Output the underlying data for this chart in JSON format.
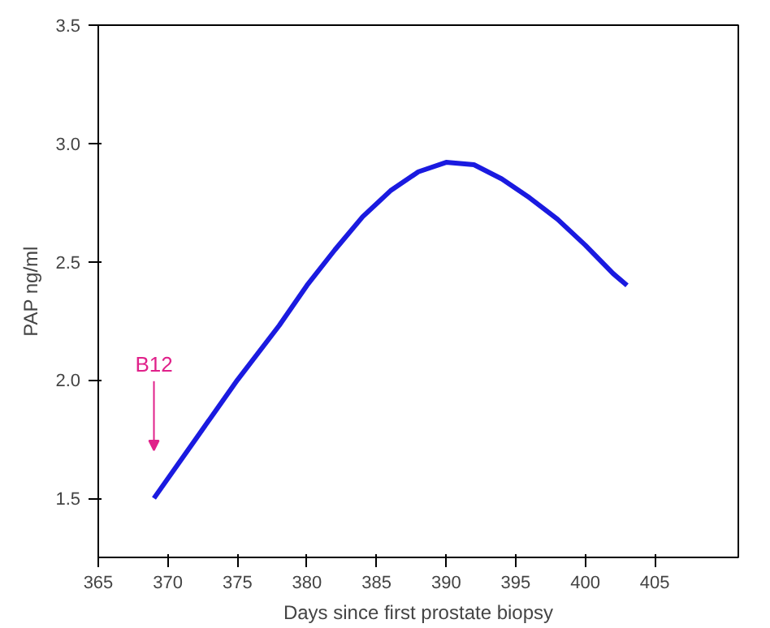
{
  "chart_data": {
    "type": "line",
    "xlabel": "Days since first prostate biopsy",
    "ylabel": "PAP ng/ml",
    "xlim": [
      365,
      411
    ],
    "xticks": [
      365,
      370,
      375,
      380,
      385,
      390,
      395,
      400,
      405
    ],
    "ylim": [
      1.25,
      3.5
    ],
    "yticks": [
      1.5,
      {
        "value": 2,
        "label": "2.0"
      },
      2.5,
      {
        "value": 3,
        "label": "3.0"
      },
      3.5
    ],
    "grid": false,
    "marker": "none",
    "line_style": "solid",
    "series": [
      {
        "color": "#1a1ae0",
        "x": [
          369,
          372,
          375,
          378,
          380,
          382,
          384,
          386,
          388,
          390,
          392,
          394,
          396,
          398,
          400,
          402,
          403
        ],
        "values": [
          1.5,
          1.75,
          2.0,
          2.23,
          2.4,
          2.55,
          2.69,
          2.8,
          2.88,
          2.92,
          2.91,
          2.85,
          2.77,
          2.68,
          2.57,
          2.45,
          2.4
        ]
      }
    ],
    "annotations": [
      "B12"
    ]
  }
}
